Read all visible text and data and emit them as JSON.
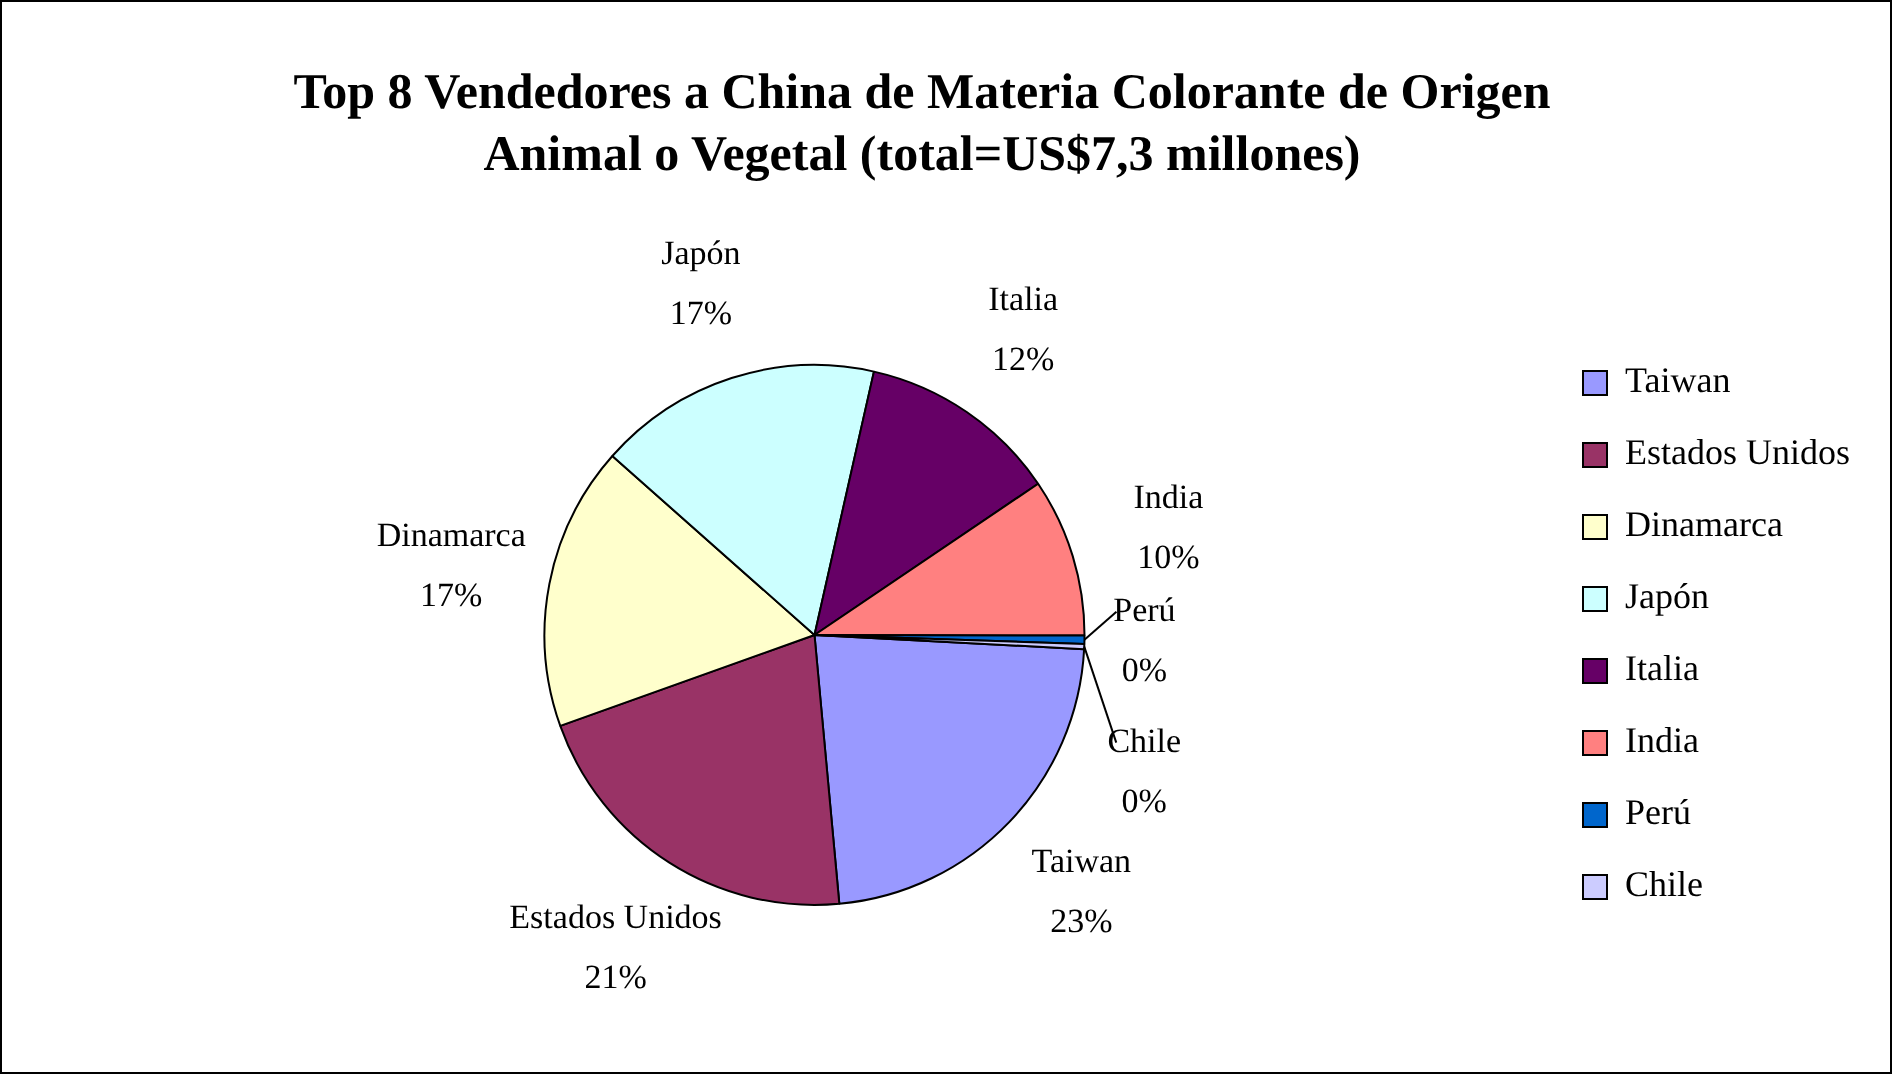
{
  "chart_data": {
    "type": "pie",
    "title": "Top 8 Vendedores a China de Materia Colorante de Origen Animal o Vegetal (total=US$7,3 millones)",
    "categories": [
      "Taiwan",
      "Estados Unidos",
      "Dinamarca",
      "Japón",
      "Italia",
      "India",
      "Perú",
      "Chile"
    ],
    "values": [
      22.7,
      21,
      17,
      17,
      12,
      9.5,
      0.5,
      0.3
    ],
    "value_labels": [
      "23%",
      "21%",
      "17%",
      "17%",
      "12%",
      "10%",
      "0%",
      "0%"
    ],
    "colors": [
      "#9999ff",
      "#993366",
      "#ffffcc",
      "#ccffff",
      "#660066",
      "#ff8080",
      "#0066cc",
      "#ccccff"
    ],
    "legend": "right"
  }
}
